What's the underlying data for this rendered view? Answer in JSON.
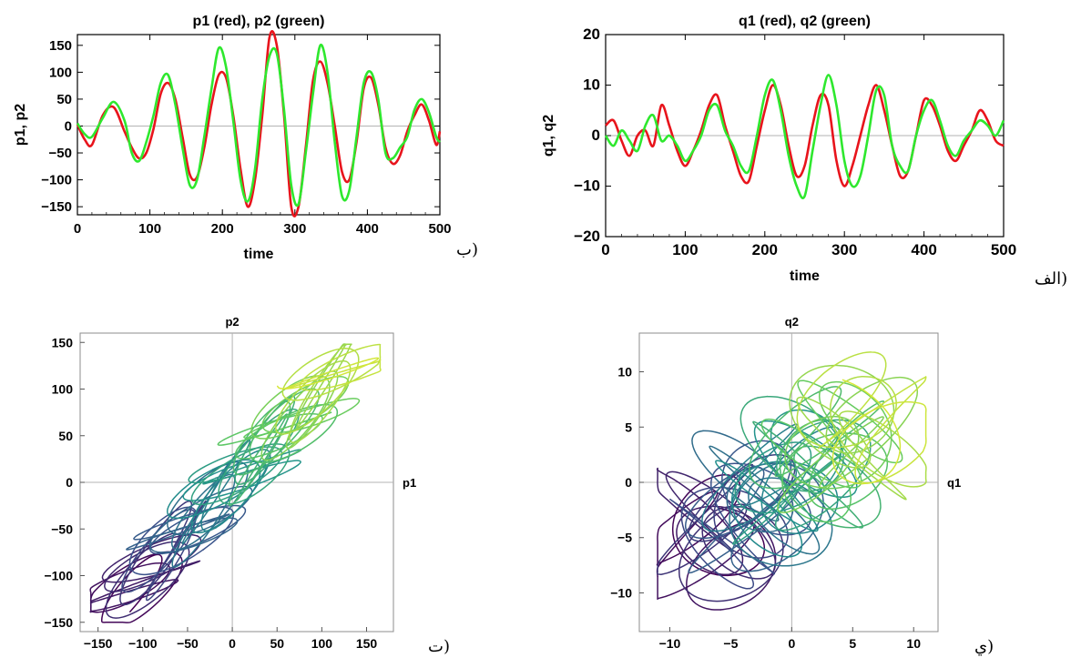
{
  "colors": {
    "red": "#e8141c",
    "green": "#2ee82e",
    "axis": "#000000",
    "zero_line": "#b3b3b3",
    "frame": "#8c8c8c",
    "viridis": [
      "#440154",
      "#3b528b",
      "#21918c",
      "#5ec962",
      "#d9e838"
    ]
  },
  "panel_labels": {
    "a": "الف)",
    "b": "ب)",
    "c": "ت)",
    "d": "ي)"
  },
  "chart_data": [
    {
      "id": "p-time",
      "type": "line",
      "title": "p1 (red), p2 (green)",
      "xlabel": "time",
      "ylabel": "p1, p2",
      "xlim": [
        0,
        500
      ],
      "ylim": [
        -165,
        170
      ],
      "xticks": [
        0,
        100,
        200,
        300,
        400,
        500
      ],
      "yticks": [
        -150,
        -100,
        -50,
        0,
        50,
        100,
        150
      ],
      "grid": false,
      "series": [
        {
          "color": "red",
          "x": [
            0,
            10,
            20,
            35,
            50,
            65,
            75,
            85,
            95,
            105,
            115,
            125,
            135,
            145,
            155,
            165,
            175,
            185,
            195,
            205,
            215,
            225,
            235,
            245,
            255,
            265,
            275,
            285,
            295,
            305,
            315,
            325,
            335,
            345,
            355,
            365,
            375,
            385,
            395,
            405,
            415,
            425,
            435,
            445,
            455,
            465,
            475,
            485,
            495,
            500
          ],
          "y": [
            3,
            -25,
            -35,
            20,
            35,
            -10,
            -40,
            -60,
            -50,
            -5,
            60,
            80,
            50,
            -20,
            -90,
            -95,
            -40,
            40,
            95,
            90,
            20,
            -80,
            -150,
            -100,
            20,
            165,
            150,
            20,
            -150,
            -150,
            -40,
            85,
            120,
            80,
            0,
            -85,
            -100,
            -30,
            70,
            90,
            40,
            -40,
            -70,
            -55,
            -10,
            20,
            40,
            10,
            -35,
            -10
          ]
        },
        {
          "color": "green",
          "x": [
            0,
            10,
            20,
            35,
            50,
            65,
            75,
            85,
            95,
            105,
            115,
            125,
            135,
            145,
            155,
            165,
            175,
            185,
            195,
            205,
            215,
            225,
            235,
            245,
            255,
            265,
            275,
            285,
            295,
            305,
            315,
            325,
            335,
            345,
            355,
            365,
            375,
            385,
            395,
            405,
            415,
            425,
            435,
            445,
            455,
            465,
            475,
            485,
            495,
            500
          ],
          "y": [
            5,
            -15,
            -20,
            15,
            45,
            10,
            -50,
            -65,
            -30,
            20,
            80,
            95,
            40,
            -40,
            -110,
            -100,
            -20,
            70,
            145,
            110,
            10,
            -100,
            -140,
            -80,
            50,
            130,
            135,
            30,
            -110,
            -145,
            -50,
            60,
            150,
            100,
            -30,
            -130,
            -120,
            -20,
            80,
            100,
            50,
            -50,
            -60,
            -40,
            -20,
            30,
            50,
            25,
            -20,
            -30
          ]
        }
      ]
    },
    {
      "id": "q-time",
      "type": "line",
      "title": "q1 (red), q2 (green)",
      "xlabel": "time",
      "ylabel": "q1, q2",
      "xlim": [
        0,
        500
      ],
      "ylim": [
        -20,
        20
      ],
      "xticks": [
        0,
        100,
        200,
        300,
        400,
        500
      ],
      "yticks": [
        -20,
        -10,
        0,
        10,
        20
      ],
      "grid": false,
      "series": [
        {
          "color": "red",
          "x": [
            0,
            10,
            20,
            30,
            40,
            50,
            60,
            70,
            80,
            90,
            100,
            110,
            120,
            130,
            140,
            150,
            160,
            170,
            180,
            190,
            200,
            210,
            220,
            230,
            240,
            250,
            260,
            270,
            280,
            290,
            300,
            310,
            320,
            330,
            340,
            350,
            360,
            370,
            380,
            390,
            400,
            410,
            420,
            430,
            440,
            450,
            460,
            470,
            480,
            490,
            500
          ],
          "y": [
            2,
            3,
            -1,
            -4,
            0,
            1,
            -2,
            6,
            2,
            -3,
            -6,
            -3,
            1,
            6,
            8,
            2,
            -3,
            -8,
            -9,
            -2,
            5,
            10,
            6,
            -2,
            -8,
            -6,
            2,
            8,
            6,
            -5,
            -10,
            -6,
            0,
            6,
            10,
            5,
            -2,
            -8,
            -7,
            0,
            7,
            6,
            2,
            -3,
            -5,
            -2,
            1,
            5,
            3,
            -1,
            -2
          ]
        },
        {
          "color": "green",
          "x": [
            0,
            10,
            20,
            30,
            40,
            50,
            60,
            70,
            80,
            90,
            100,
            110,
            120,
            130,
            140,
            150,
            160,
            170,
            180,
            190,
            200,
            210,
            220,
            230,
            240,
            250,
            260,
            270,
            280,
            290,
            300,
            310,
            320,
            330,
            340,
            350,
            360,
            370,
            380,
            390,
            400,
            410,
            420,
            430,
            440,
            450,
            460,
            470,
            480,
            490,
            500
          ],
          "y": [
            0,
            -2,
            1,
            -1,
            -3,
            2,
            4,
            -1,
            0,
            -2,
            -5,
            -3,
            0,
            5,
            6,
            1,
            -2,
            -6,
            -7,
            0,
            8,
            11,
            5,
            -4,
            -10,
            -12,
            -3,
            6,
            12,
            6,
            -5,
            -10,
            -8,
            0,
            9,
            8,
            -2,
            -6,
            -7,
            0,
            5,
            7,
            3,
            -2,
            -4,
            -1,
            1,
            3,
            2,
            0,
            3
          ]
        }
      ]
    },
    {
      "id": "p-phase",
      "type": "line",
      "title": "",
      "xlabel": "p1",
      "ylabel": "p2",
      "xlim": [
        -170,
        180
      ],
      "ylim": [
        -160,
        160
      ],
      "xticks": [
        -150,
        -100,
        -50,
        0,
        50,
        100,
        150
      ],
      "yticks": [
        -150,
        -100,
        -50,
        0,
        50,
        100,
        150
      ],
      "grid": false,
      "colormap": "viridis",
      "x": [],
      "y": []
    },
    {
      "id": "q-phase",
      "type": "line",
      "title": "",
      "xlabel": "q1",
      "ylabel": "q2",
      "xlim": [
        -12.5,
        12
      ],
      "ylim": [
        -13.5,
        13.5
      ],
      "xticks": [
        -10,
        -5,
        0,
        5,
        10
      ],
      "yticks": [
        -10,
        -5,
        0,
        5,
        10
      ],
      "grid": false,
      "colormap": "viridis",
      "x": [],
      "y": []
    }
  ]
}
